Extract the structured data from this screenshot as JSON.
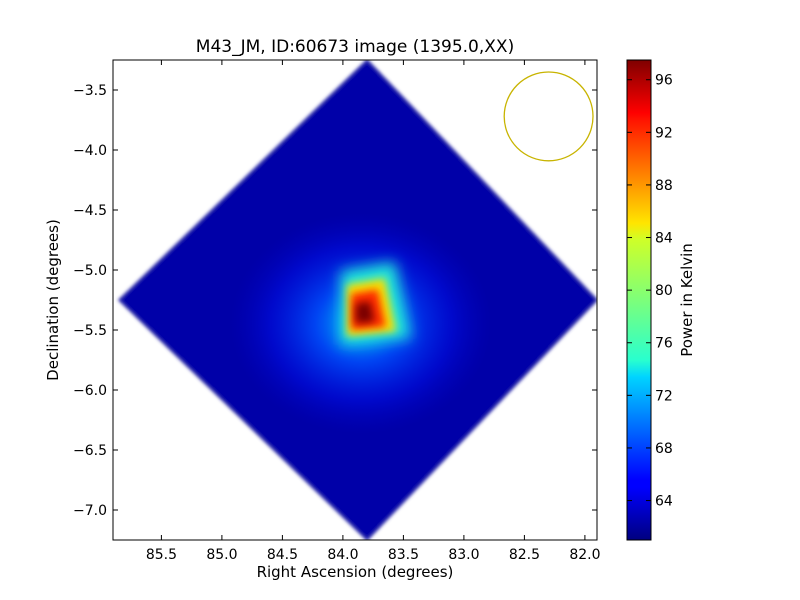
{
  "chart_data": {
    "type": "heatmap",
    "title": "M43_JM, ID:60673 image (1395.0,XX)",
    "xlabel": "Right Ascension (degrees)",
    "ylabel": "Declination (degrees)",
    "colorbar_label": "Power in Kelvin",
    "xlim": [
      85.9,
      81.9
    ],
    "ylim": [
      -7.25,
      -3.25
    ],
    "x_ticks": [
      85.5,
      85.0,
      84.5,
      84.0,
      83.5,
      83.0,
      82.5,
      82.0
    ],
    "x_tick_labels": [
      "85.5",
      "85.0",
      "84.5",
      "84.0",
      "83.5",
      "83.0",
      "82.5",
      "82.0"
    ],
    "y_ticks": [
      -3.5,
      -4.0,
      -4.5,
      -5.0,
      -5.5,
      -6.0,
      -6.5,
      -7.0
    ],
    "y_tick_labels": [
      "−3.5",
      "−4.0",
      "−4.5",
      "−5.0",
      "−5.5",
      "−6.0",
      "−6.5",
      "−7.0"
    ],
    "colorbar_range": [
      61.0,
      97.5
    ],
    "colorbar_ticks": [
      64,
      68,
      72,
      76,
      80,
      84,
      88,
      92,
      96
    ],
    "colorbar_tick_labels": [
      "64",
      "68",
      "72",
      "76",
      "80",
      "84",
      "88",
      "92",
      "96"
    ],
    "colormap": "jet",
    "background_level": 62,
    "footprint_ra_dec": [
      [
        83.8,
        -3.25
      ],
      [
        85.85,
        -5.25
      ],
      [
        83.8,
        -7.25
      ],
      [
        81.9,
        -5.25
      ]
    ],
    "peak": {
      "ra": 83.85,
      "dec": -5.38,
      "value": 97.5
    },
    "hot_region_ra_dec": [
      [
        84.0,
        -5.05
      ],
      [
        83.6,
        -4.98
      ],
      [
        83.48,
        -5.55
      ],
      [
        84.0,
        -5.6
      ]
    ],
    "beam": {
      "ra": 82.3,
      "dec": -3.72,
      "radius_deg": 0.37,
      "color": "#c8b400"
    }
  }
}
